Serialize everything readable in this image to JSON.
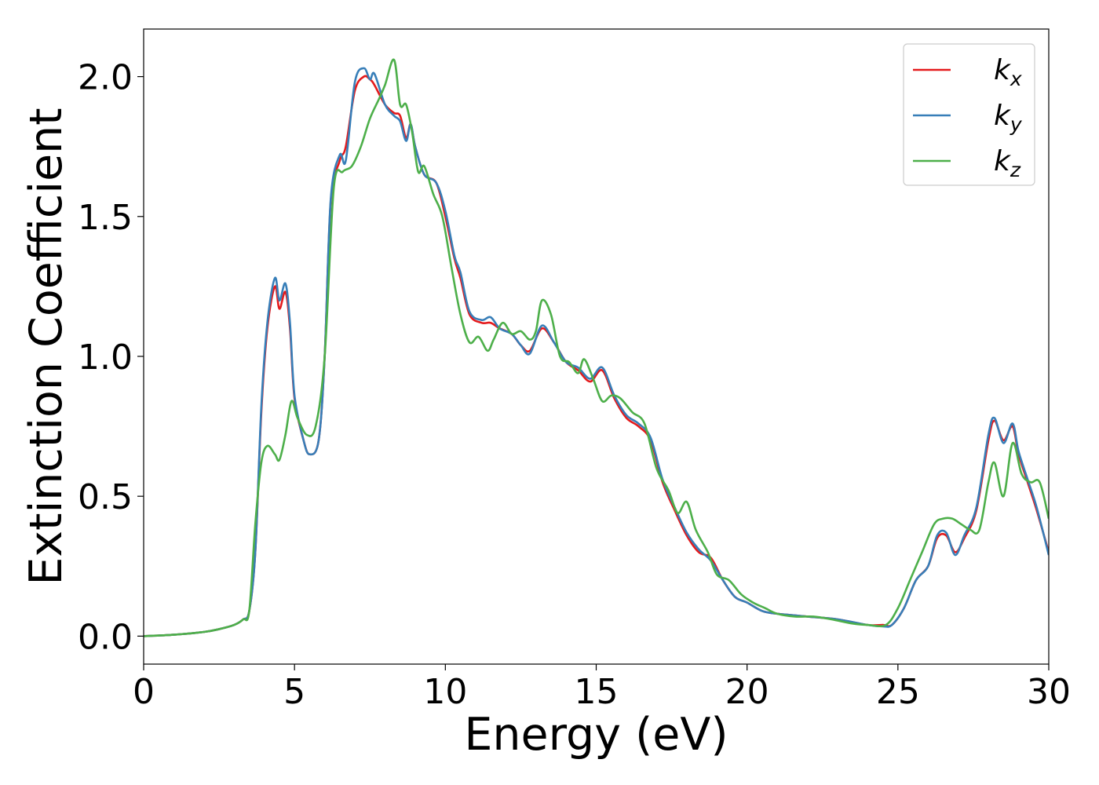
{
  "chart_data": {
    "type": "line",
    "xlabel": "Energy (eV)",
    "ylabel": "Extinction Coefficient",
    "xlim": [
      0,
      30
    ],
    "ylim": [
      -0.1,
      2.17
    ],
    "xticks": [
      0,
      5,
      10,
      15,
      20,
      25,
      30
    ],
    "xtick_labels": [
      "0",
      "5",
      "10",
      "15",
      "20",
      "25",
      "30"
    ],
    "yticks": [
      0.0,
      0.5,
      1.0,
      1.5,
      2.0
    ],
    "ytick_labels": [
      "0.0",
      "0.5",
      "1.0",
      "1.5",
      "2.0"
    ],
    "grid": false,
    "legend_position": "top-right",
    "series": [
      {
        "name": "kx",
        "base": "k",
        "sub": "x",
        "color": "#e41a1c",
        "x": [
          0,
          1,
          2,
          2.5,
          3,
          3.3,
          3.5,
          3.7,
          3.9,
          4.1,
          4.35,
          4.5,
          4.7,
          4.85,
          5.0,
          5.3,
          5.5,
          5.8,
          6.0,
          6.2,
          6.5,
          6.7,
          7.0,
          7.3,
          7.5,
          7.65,
          8.0,
          8.3,
          8.5,
          8.7,
          8.85,
          9.0,
          9.3,
          9.7,
          10.0,
          10.3,
          10.5,
          10.8,
          11.2,
          11.5,
          11.8,
          12.2,
          12.5,
          12.8,
          13.2,
          13.6,
          14.0,
          14.4,
          14.8,
          15.2,
          15.6,
          16.0,
          16.4,
          16.8,
          17.2,
          17.6,
          18.0,
          18.4,
          18.8,
          19.2,
          19.6,
          20.0,
          20.5,
          21.0,
          22.0,
          23.0,
          24.0,
          24.5,
          24.8,
          25.2,
          25.6,
          26.0,
          26.3,
          26.6,
          26.9,
          27.2,
          27.6,
          28.0,
          28.2,
          28.5,
          28.8,
          29.0,
          29.3,
          29.6,
          30.0
        ],
        "y": [
          0.0,
          0.005,
          0.015,
          0.025,
          0.04,
          0.06,
          0.09,
          0.3,
          0.8,
          1.1,
          1.25,
          1.17,
          1.23,
          1.1,
          0.85,
          0.7,
          0.65,
          0.7,
          1.0,
          1.55,
          1.7,
          1.75,
          1.95,
          2.0,
          1.99,
          1.97,
          1.9,
          1.87,
          1.86,
          1.78,
          1.83,
          1.75,
          1.65,
          1.62,
          1.5,
          1.35,
          1.28,
          1.15,
          1.12,
          1.12,
          1.1,
          1.08,
          1.04,
          1.02,
          1.1,
          1.05,
          0.98,
          0.95,
          0.91,
          0.95,
          0.85,
          0.78,
          0.75,
          0.7,
          0.55,
          0.45,
          0.36,
          0.3,
          0.28,
          0.2,
          0.14,
          0.12,
          0.09,
          0.08,
          0.07,
          0.06,
          0.04,
          0.04,
          0.04,
          0.1,
          0.2,
          0.25,
          0.35,
          0.36,
          0.3,
          0.35,
          0.45,
          0.7,
          0.77,
          0.7,
          0.75,
          0.65,
          0.55,
          0.45,
          0.3
        ]
      },
      {
        "name": "ky",
        "base": "k",
        "sub": "y",
        "color": "#377eb8",
        "x": [
          0,
          1,
          2,
          2.5,
          3,
          3.3,
          3.5,
          3.7,
          3.9,
          4.1,
          4.35,
          4.5,
          4.7,
          4.85,
          5.0,
          5.3,
          5.5,
          5.8,
          6.0,
          6.2,
          6.5,
          6.7,
          7.0,
          7.3,
          7.5,
          7.65,
          8.0,
          8.3,
          8.5,
          8.7,
          8.85,
          9.0,
          9.3,
          9.7,
          10.0,
          10.3,
          10.5,
          10.8,
          11.2,
          11.5,
          11.8,
          12.2,
          12.5,
          12.8,
          13.2,
          13.6,
          14.0,
          14.4,
          14.8,
          15.2,
          15.6,
          16.0,
          16.4,
          16.8,
          17.2,
          17.6,
          18.0,
          18.4,
          18.8,
          19.2,
          19.6,
          20.0,
          20.5,
          21.0,
          22.0,
          23.0,
          24.0,
          24.5,
          24.8,
          25.2,
          25.6,
          26.0,
          26.3,
          26.6,
          26.9,
          27.2,
          27.6,
          28.0,
          28.2,
          28.5,
          28.8,
          29.0,
          29.3,
          29.6,
          30.0
        ],
        "y": [
          0.0,
          0.005,
          0.015,
          0.025,
          0.04,
          0.06,
          0.09,
          0.3,
          0.82,
          1.12,
          1.28,
          1.2,
          1.26,
          1.12,
          0.86,
          0.7,
          0.65,
          0.7,
          1.0,
          1.56,
          1.72,
          1.7,
          1.98,
          2.03,
          1.99,
          2.01,
          1.9,
          1.86,
          1.84,
          1.77,
          1.83,
          1.75,
          1.65,
          1.62,
          1.52,
          1.36,
          1.3,
          1.16,
          1.13,
          1.14,
          1.1,
          1.08,
          1.04,
          1.01,
          1.11,
          1.05,
          0.98,
          0.96,
          0.92,
          0.96,
          0.86,
          0.79,
          0.76,
          0.71,
          0.56,
          0.46,
          0.37,
          0.31,
          0.27,
          0.2,
          0.14,
          0.12,
          0.09,
          0.08,
          0.07,
          0.06,
          0.04,
          0.035,
          0.04,
          0.1,
          0.2,
          0.25,
          0.36,
          0.37,
          0.29,
          0.36,
          0.46,
          0.72,
          0.78,
          0.69,
          0.76,
          0.66,
          0.56,
          0.46,
          0.29
        ]
      },
      {
        "name": "kz",
        "base": "k",
        "sub": "z",
        "color": "#4daf4a",
        "x": [
          0,
          1,
          2,
          2.5,
          3,
          3.3,
          3.5,
          3.7,
          3.9,
          4.1,
          4.35,
          4.5,
          4.7,
          4.9,
          5.1,
          5.4,
          5.7,
          6.0,
          6.3,
          6.6,
          6.9,
          7.2,
          7.5,
          7.8,
          8.0,
          8.3,
          8.5,
          8.7,
          8.9,
          9.1,
          9.3,
          9.6,
          9.9,
          10.2,
          10.5,
          10.8,
          11.1,
          11.4,
          11.6,
          11.9,
          12.2,
          12.5,
          12.8,
          13.0,
          13.2,
          13.5,
          13.8,
          14.1,
          14.4,
          14.6,
          14.9,
          15.2,
          15.5,
          15.8,
          16.2,
          16.6,
          17.0,
          17.4,
          17.7,
          18.0,
          18.3,
          18.7,
          19.0,
          19.4,
          19.8,
          20.2,
          20.6,
          21.0,
          21.6,
          22.2,
          22.8,
          23.5,
          24.0,
          24.6,
          25.0,
          25.4,
          25.8,
          26.2,
          26.5,
          26.8,
          27.1,
          27.4,
          27.7,
          28.0,
          28.2,
          28.5,
          28.8,
          29.1,
          29.4,
          29.7,
          30.0
        ],
        "y": [
          0.0,
          0.005,
          0.015,
          0.025,
          0.04,
          0.06,
          0.09,
          0.4,
          0.62,
          0.68,
          0.65,
          0.63,
          0.72,
          0.84,
          0.78,
          0.72,
          0.75,
          1.0,
          1.6,
          1.66,
          1.68,
          1.75,
          1.85,
          1.92,
          1.97,
          2.06,
          1.9,
          1.9,
          1.8,
          1.66,
          1.68,
          1.58,
          1.5,
          1.32,
          1.15,
          1.05,
          1.07,
          1.02,
          1.06,
          1.12,
          1.08,
          1.09,
          1.06,
          1.09,
          1.2,
          1.15,
          1.0,
          0.98,
          0.94,
          0.99,
          0.92,
          0.84,
          0.86,
          0.85,
          0.8,
          0.76,
          0.6,
          0.52,
          0.44,
          0.48,
          0.38,
          0.3,
          0.22,
          0.2,
          0.15,
          0.12,
          0.1,
          0.08,
          0.07,
          0.07,
          0.06,
          0.045,
          0.04,
          0.04,
          0.1,
          0.2,
          0.3,
          0.4,
          0.42,
          0.42,
          0.4,
          0.38,
          0.38,
          0.55,
          0.62,
          0.5,
          0.69,
          0.58,
          0.55,
          0.55,
          0.42
        ]
      }
    ]
  }
}
